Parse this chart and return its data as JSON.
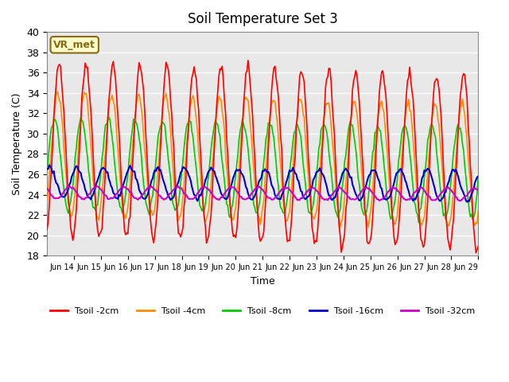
{
  "title": "Soil Temperature Set 3",
  "xlabel": "Time",
  "ylabel": "Soil Temperature (C)",
  "ylim": [
    18,
    40
  ],
  "background_color": "#e8e8e8",
  "grid_color": "#ffffff",
  "annotation_text": "VR_met",
  "annotation_bg": "#ffffcc",
  "annotation_border": "#8B6914",
  "legend_labels": [
    "Tsoil -2cm",
    "Tsoil -4cm",
    "Tsoil -8cm",
    "Tsoil -16cm",
    "Tsoil -32cm"
  ],
  "line_colors": [
    "#ff0000",
    "#ff8c00",
    "#00cc00",
    "#0000cc",
    "#cc00cc"
  ],
  "tick_dates": [
    "Jun 14",
    "Jun 15",
    "Jun 16",
    "Jun 17",
    "Jun 18",
    "Jun 19",
    "Jun 20",
    "Jun 21",
    "Jun 22",
    "Jun 23",
    "Jun 24",
    "Jun 25",
    "Jun 26",
    "Jun 27",
    "Jun 28",
    "Jun 29"
  ],
  "yticks": [
    18,
    20,
    22,
    24,
    26,
    28,
    30,
    32,
    34,
    36,
    38,
    40
  ],
  "series_params": {
    "t2cm": {
      "mean": 28.5,
      "amp": 8.5,
      "phase": -1.257,
      "trend": -0.08,
      "noise": 0.3
    },
    "t4cm": {
      "mean": 28.0,
      "amp": 6.0,
      "phase": -0.942,
      "trend": -0.07,
      "noise": 0.2
    },
    "t8cm": {
      "mean": 27.0,
      "amp": 4.5,
      "phase": -0.157,
      "trend": -0.05,
      "noise": 0.2
    },
    "t16cm": {
      "mean": 25.2,
      "amp": 1.5,
      "phase": 0.942,
      "trend": -0.02,
      "noise": 0.1
    },
    "t32cm": {
      "mean": 24.2,
      "amp": 0.6,
      "phase": 2.513,
      "trend": -0.01,
      "noise": 0.05
    }
  }
}
